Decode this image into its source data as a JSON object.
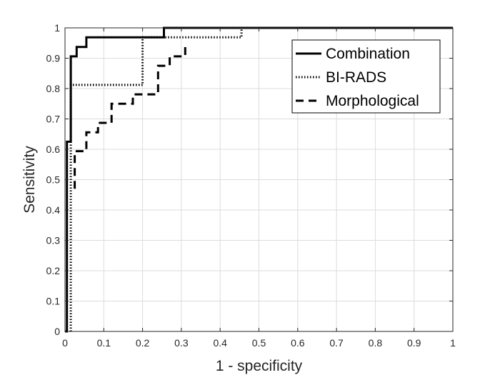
{
  "chart_data": {
    "type": "line",
    "title": "",
    "xlabel": "1 - specificity",
    "ylabel": "Sensitivity",
    "xlim": [
      0,
      1
    ],
    "ylim": [
      0,
      1
    ],
    "grid": true,
    "xticks": [
      0,
      0.1,
      0.2,
      0.3,
      0.4,
      0.5,
      0.6,
      0.7,
      0.8,
      0.9,
      1
    ],
    "yticks": [
      0,
      0.1,
      0.2,
      0.3,
      0.4,
      0.5,
      0.6,
      0.7,
      0.8,
      0.9,
      1
    ],
    "xtick_labels": [
      "0",
      "0.1",
      "0.2",
      "0.3",
      "0.4",
      "0.5",
      "0.6",
      "0.7",
      "0.8",
      "0.9",
      "1"
    ],
    "ytick_labels": [
      "0",
      "0.1",
      "0.2",
      "0.3",
      "0.4",
      "0.5",
      "0.6",
      "0.7",
      "0.8",
      "0.9",
      "1"
    ],
    "legend_position": "top-right",
    "series": [
      {
        "name": "Combination",
        "style": "solid",
        "color": "#000000",
        "x": [
          0,
          0.005,
          0.005,
          0.015,
          0.015,
          0.03,
          0.03,
          0.055,
          0.055,
          0.255,
          0.255,
          1
        ],
        "y": [
          0,
          0,
          0.625,
          0.625,
          0.906,
          0.906,
          0.937,
          0.937,
          0.969,
          0.969,
          1,
          1
        ]
      },
      {
        "name": "BI-RADS",
        "style": "dotted",
        "color": "#000000",
        "x": [
          0.015,
          0.015,
          0.2,
          0.2,
          0.455,
          0.455
        ],
        "y": [
          0,
          0.812,
          0.812,
          0.969,
          0.969,
          1
        ]
      },
      {
        "name": "Morphological",
        "style": "dashed",
        "color": "#000000",
        "x": [
          0.025,
          0.025,
          0.055,
          0.055,
          0.085,
          0.085,
          0.12,
          0.12,
          0.175,
          0.175,
          0.24,
          0.24,
          0.27,
          0.27,
          0.31,
          0.31
        ],
        "y": [
          0.47,
          0.594,
          0.594,
          0.656,
          0.656,
          0.687,
          0.687,
          0.75,
          0.75,
          0.781,
          0.781,
          0.875,
          0.875,
          0.906,
          0.906,
          0.937
        ]
      }
    ]
  }
}
